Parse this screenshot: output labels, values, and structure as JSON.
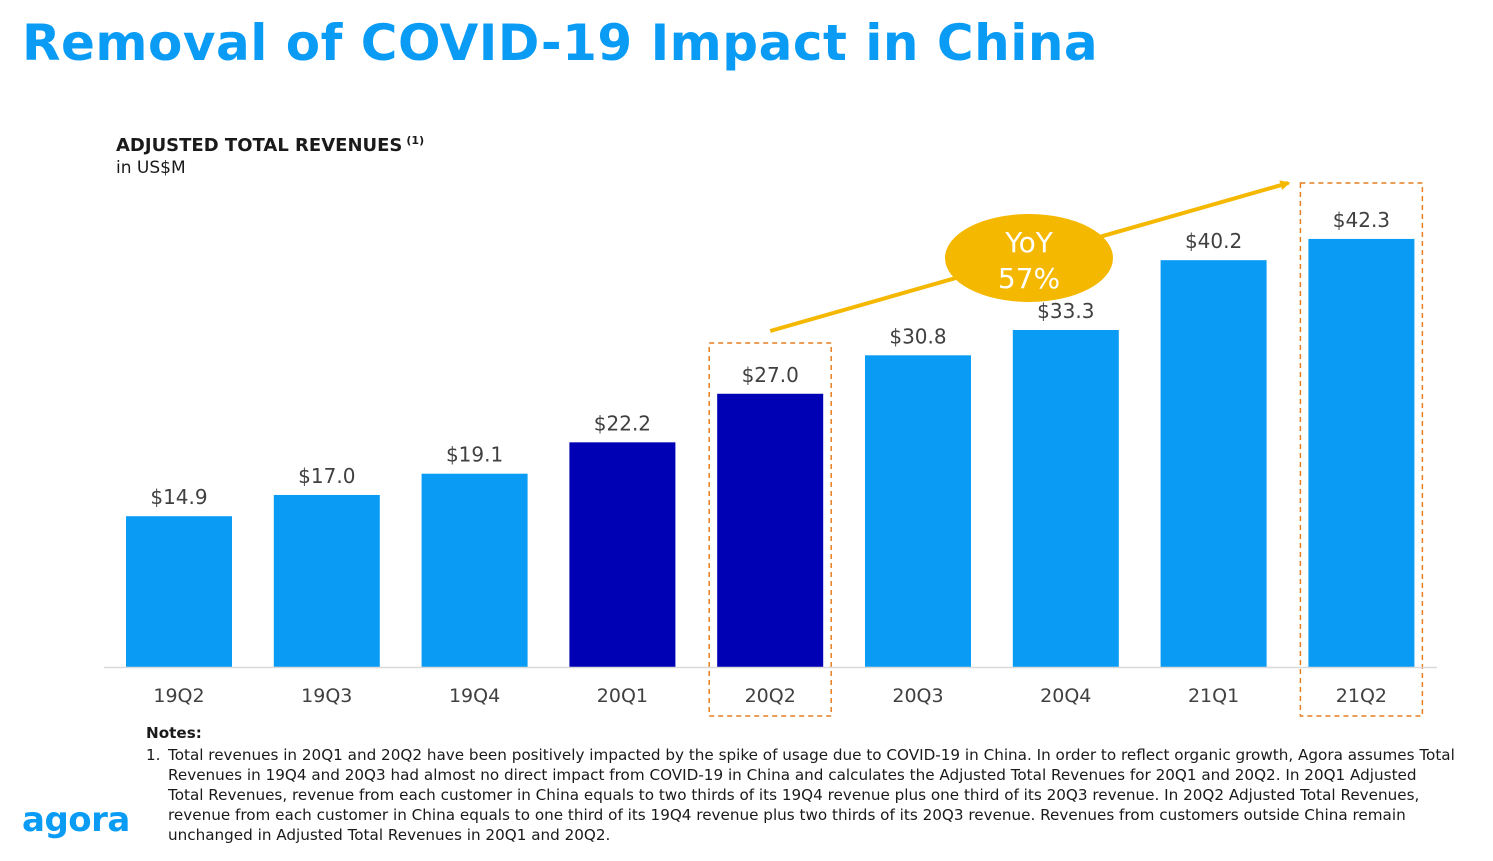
{
  "slide": {
    "title": "Removal of COVID-19 Impact in China",
    "logo_text": "agora"
  },
  "chart_data": {
    "type": "bar",
    "title": "ADJUSTED TOTAL REVENUES",
    "title_footnote": "(1)",
    "subtitle": "in US$M",
    "categories": [
      "19Q2",
      "19Q3",
      "19Q4",
      "20Q1",
      "20Q2",
      "20Q3",
      "20Q4",
      "21Q1",
      "21Q2"
    ],
    "values": [
      14.9,
      17.0,
      19.1,
      22.2,
      27.0,
      30.8,
      33.3,
      40.2,
      42.3
    ],
    "value_labels": [
      "$14.9",
      "$17.0",
      "$19.1",
      "$22.2",
      "$27.0",
      "$30.8",
      "$33.3",
      "$40.2",
      "$42.3"
    ],
    "bar_colors": [
      "#0a9cf5",
      "#0a9cf5",
      "#0a9cf5",
      "#0000b4",
      "#0000b4",
      "#0a9cf5",
      "#0a9cf5",
      "#0a9cf5",
      "#0a9cf5"
    ],
    "highlighted_categories": [
      "20Q2",
      "21Q2"
    ],
    "ylim": [
      0,
      44
    ],
    "grid": false,
    "annotation": {
      "type": "arrow",
      "from": "20Q2",
      "to": "21Q2",
      "label_line1": "YoY",
      "label_line2": "57%",
      "color": "#f5b800"
    },
    "colors": {
      "primary_bar": "#0a9cf5",
      "adjusted_bar": "#0000b4",
      "highlight_box": "#e67e22",
      "label_text": "#404040"
    }
  },
  "notes": {
    "heading": "Notes:",
    "items": [
      {
        "number": "1.",
        "text": "Total revenues in 20Q1 and 20Q2 have been positively impacted by the spike of usage due to COVID-19 in China. In order to reflect organic growth, Agora assumes Total Revenues in 19Q4 and 20Q3 had almost no direct impact from COVID-19 in China and calculates the Adjusted Total Revenues for 20Q1 and 20Q2. In 20Q1 Adjusted Total Revenues, revenue from each customer in China equals to two thirds of its 19Q4 revenue plus one third of its 20Q3 revenue. In 20Q2 Adjusted Total Revenues, revenue from each customer in China equals to one third of its 19Q4 revenue plus two thirds of its 20Q3 revenue. Revenues from customers outside China remain unchanged in Adjusted Total Revenues in 20Q1 and 20Q2."
      }
    ]
  }
}
